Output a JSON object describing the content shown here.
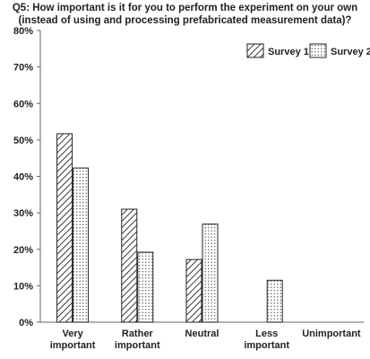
{
  "chart_data": {
    "type": "bar",
    "title_lines": [
      "Q5: How important is it for you to perform the experiment on your own",
      "(instead of using and processing prefabricated measurement data)?"
    ],
    "categories": [
      [
        "Very",
        "important"
      ],
      [
        "Rather",
        "important"
      ],
      [
        "Neutral"
      ],
      [
        "Less",
        "important"
      ],
      [
        "Unimportant"
      ]
    ],
    "series": [
      {
        "name": "Survey 1",
        "pattern": "diagonal-hatch",
        "values": [
          51.7,
          31.0,
          17.2,
          0,
          0
        ]
      },
      {
        "name": "Survey 2",
        "pattern": "dots",
        "values": [
          42.3,
          19.2,
          26.9,
          11.5,
          0
        ]
      }
    ],
    "ylim": [
      0,
      80
    ],
    "yticks": [
      0,
      10,
      20,
      30,
      40,
      50,
      60,
      70,
      80
    ],
    "ytick_suffix": "%",
    "grid": false,
    "legend_position": "top-right"
  }
}
